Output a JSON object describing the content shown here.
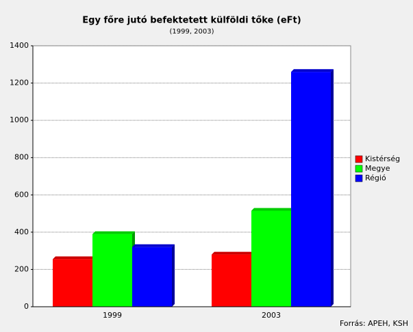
{
  "chart_data": {
    "type": "bar",
    "title": "Egy főre jutó befektetett külföldi tőke (eFt)",
    "subtitle": "(1999, 2003)",
    "categories": [
      "1999",
      "2003"
    ],
    "series": [
      {
        "name": "Kistérség",
        "color": "#ff0000",
        "values": [
          255,
          280
        ]
      },
      {
        "name": "Megye",
        "color": "#00ff00",
        "values": [
          390,
          515
        ]
      },
      {
        "name": "Régió",
        "color": "#0000ff",
        "values": [
          320,
          1260
        ]
      }
    ],
    "ylim": [
      0,
      1400
    ],
    "yticks": [
      0,
      200,
      400,
      600,
      800,
      1000,
      1200,
      1400
    ],
    "grid": true,
    "legend": "right",
    "source": "Forrás: APEH, KSH"
  }
}
